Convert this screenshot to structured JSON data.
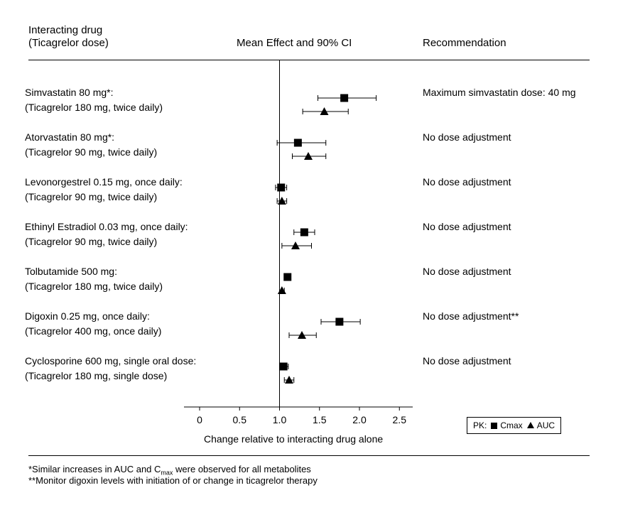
{
  "header": {
    "col1_line1": "Interacting drug",
    "col1_line2": "(Ticagrelor dose)",
    "col2": "Mean Effect and 90% CI",
    "col3": "Recommendation"
  },
  "chart_data": {
    "type": "scatter",
    "title": "Mean Effect and 90% CI",
    "xlabel": "Change relative to interacting drug alone",
    "ylabel": "",
    "xlim": [
      -0.1,
      2.7
    ],
    "xticks": [
      0,
      0.5,
      1.0,
      1.5,
      2.0,
      2.5
    ],
    "xtick_labels": [
      "0",
      "0.5",
      "1.0",
      "1.5",
      "2.0",
      "2.5"
    ],
    "reference_line": 1.0,
    "series_names": [
      "Cmax",
      "AUC"
    ],
    "rows": [
      {
        "drug": "Simvastatin 80 mg*:",
        "dose": "(Ticagrelor 180 mg, twice daily)",
        "recommendation": "Maximum simvastatin dose: 40 mg",
        "cmax": {
          "mean": 1.81,
          "lo": 1.48,
          "hi": 2.21
        },
        "auc": {
          "mean": 1.56,
          "lo": 1.29,
          "hi": 1.86
        }
      },
      {
        "drug": "Atorvastatin 80 mg*:",
        "dose": "(Ticagrelor 90 mg, twice daily)",
        "recommendation": "No dose adjustment",
        "cmax": {
          "mean": 1.23,
          "lo": 0.97,
          "hi": 1.58
        },
        "auc": {
          "mean": 1.36,
          "lo": 1.16,
          "hi": 1.58
        }
      },
      {
        "drug": "Levonorgestrel 0.15 mg, once daily:",
        "dose": "(Ticagrelor 90 mg, twice daily)",
        "recommendation": "No dose adjustment",
        "cmax": {
          "mean": 1.02,
          "lo": 0.95,
          "hi": 1.09
        },
        "auc": {
          "mean": 1.03,
          "lo": 0.97,
          "hi": 1.09
        }
      },
      {
        "drug": "Ethinyl Estradiol 0.03 mg, once daily:",
        "dose": "(Ticagrelor 90 mg, twice daily)",
        "recommendation": "No dose adjustment",
        "cmax": {
          "mean": 1.31,
          "lo": 1.18,
          "hi": 1.44
        },
        "auc": {
          "mean": 1.2,
          "lo": 1.03,
          "hi": 1.4
        }
      },
      {
        "drug": "Tolbutamide 500 mg:",
        "dose": "(Ticagrelor 180 mg, twice daily)",
        "recommendation": "No dose adjustment",
        "cmax": {
          "mean": 1.1,
          "lo": 1.06,
          "hi": 1.14
        },
        "auc": {
          "mean": 1.03,
          "lo": 1.0,
          "hi": 1.06
        }
      },
      {
        "drug": "Digoxin 0.25 mg, once daily:",
        "dose": "(Ticagrelor 400 mg, once daily)",
        "recommendation": "No dose adjustment**",
        "cmax": {
          "mean": 1.75,
          "lo": 1.52,
          "hi": 2.01
        },
        "auc": {
          "mean": 1.28,
          "lo": 1.12,
          "hi": 1.46
        }
      },
      {
        "drug": "Cyclosporine 600 mg, single oral dose:",
        "dose": "(Ticagrelor 180 mg, single dose)",
        "recommendation": "No dose adjustment",
        "cmax": {
          "mean": 1.05,
          "lo": 1.0,
          "hi": 1.11
        },
        "auc": {
          "mean": 1.12,
          "lo": 1.06,
          "hi": 1.18
        }
      }
    ]
  },
  "legend": {
    "prefix": "PK:",
    "cmax_label": "Cmax",
    "auc_label": "AUC"
  },
  "footnotes": {
    "fn1_before": "*Similar increases in AUC and C",
    "fn1_sub": "max",
    "fn1_after": " were observed for all metabolites",
    "fn2": "**Monitor digoxin levels with initiation of or change in  ticagrelor therapy"
  }
}
